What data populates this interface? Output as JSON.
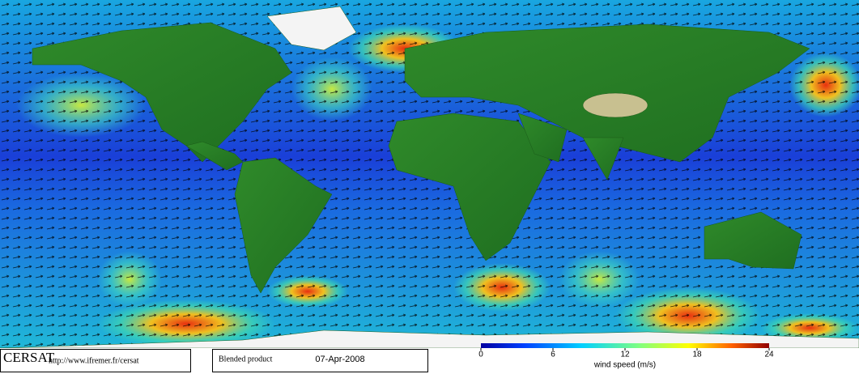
{
  "footer": {
    "logo": "CERSAT",
    "url": "http://www.ifremer.fr/cersat",
    "product": "Blended product",
    "date": "07-Apr-2008"
  },
  "colorbar": {
    "lim": [
      0,
      24
    ],
    "ticks": [
      0,
      6,
      12,
      18,
      24
    ],
    "label": "wind speed (m/s)"
  }
}
